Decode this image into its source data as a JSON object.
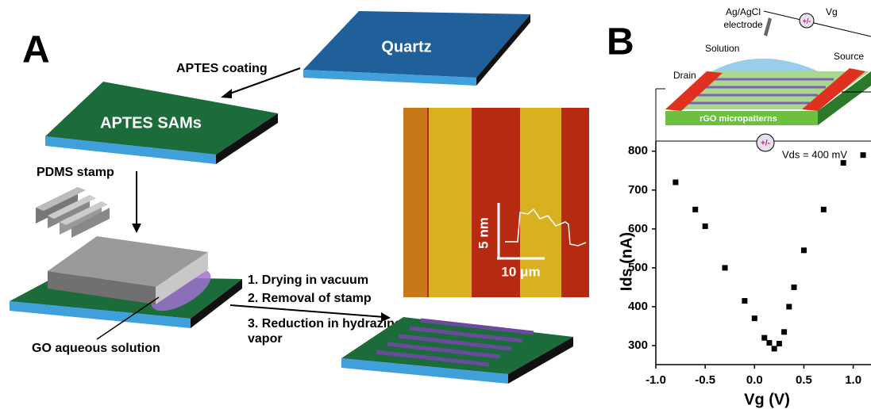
{
  "panel_a": {
    "label": "A",
    "quartz": "Quartz",
    "aptes_coating": "APTES coating",
    "aptes_sams": "APTES SAMs",
    "pdms_stamp": "PDMS stamp",
    "go_solution": "GO aqueous solution",
    "steps": [
      "1. Drying in vacuum",
      "2. Removal of stamp",
      "3. Reduction in hydrazine",
      "vapor"
    ],
    "afm_height": "5 nm",
    "afm_scale": "10 μm"
  },
  "panel_b_inset": {
    "label": "B",
    "electrode": [
      "Ag/AgCl",
      "electrode"
    ],
    "solution": "Solution",
    "gate": "Vg",
    "source_top": "+/-",
    "drain": "Drain",
    "source": "Source",
    "patterns": "rGO micropatterns",
    "source_bottom": "+/-"
  },
  "chart_data": {
    "type": "scatter",
    "x_label": "Vg (V)",
    "y_label": "Ids (nA)",
    "annotation": "Vds = 400 mV",
    "x": [
      -0.8,
      -0.6,
      -0.5,
      -0.3,
      -0.1,
      0.0,
      0.1,
      0.15,
      0.2,
      0.25,
      0.3,
      0.35,
      0.4,
      0.5,
      0.7,
      0.9,
      1.1
    ],
    "values": [
      720,
      650,
      607,
      500,
      415,
      370,
      320,
      307,
      292,
      305,
      335,
      400,
      450,
      545,
      650,
      770,
      790
    ],
    "color": "#000000",
    "xlim": [
      -1.0,
      1.18
    ],
    "ylim": [
      251,
      826
    ],
    "xticks": [
      {
        "value": -1.0,
        "label": "-1.0"
      },
      -0.5,
      {
        "value": 0.0,
        "label": "0.0"
      },
      0.5,
      {
        "value": 1.0,
        "label": "1.0"
      }
    ],
    "yticks": [
      300,
      400,
      500,
      600,
      700,
      800
    ]
  }
}
